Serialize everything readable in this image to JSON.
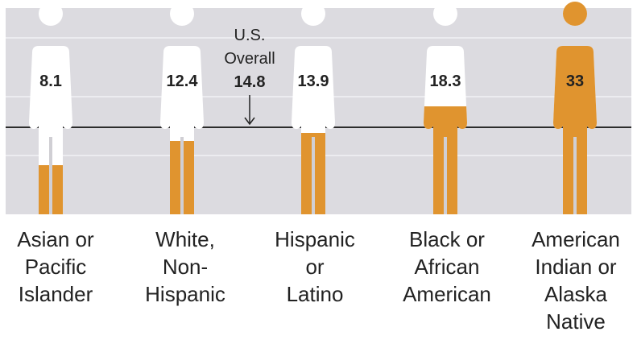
{
  "chart_data": {
    "type": "pictograph",
    "title": "",
    "categories": [
      "Asian or Pacific Islander",
      "White, Non-Hispanic",
      "Hispanic or Latino",
      "Black or African American",
      "American Indian or Alaska Native"
    ],
    "values": [
      8.1,
      12.4,
      13.9,
      18.3,
      33
    ],
    "value_labels": [
      "8.1",
      "12.4",
      "13.9",
      "18.3",
      "33"
    ],
    "reference_line": {
      "label": "U.S. Overall",
      "value": 14.8,
      "value_label": "14.8"
    },
    "xlabel": "",
    "ylabel": "",
    "ylim": [
      0,
      33
    ],
    "grid": true,
    "legend": "none",
    "colors": {
      "fill": "#e0942f",
      "empty": "#ffffff",
      "background": "#dcdbe0",
      "gridline": "#ececf0",
      "reference": "#2c2c2c"
    }
  },
  "figures": [
    {
      "value": "8.1",
      "label_lines": [
        "Asian or",
        "Pacific",
        "Islander"
      ]
    },
    {
      "value": "12.4",
      "label_lines": [
        "White,",
        "Non-",
        "Hispanic"
      ]
    },
    {
      "value": "13.9",
      "label_lines": [
        "Hispanic",
        "or",
        "Latino"
      ]
    },
    {
      "value": "18.3",
      "label_lines": [
        "Black or",
        "African",
        "American"
      ]
    },
    {
      "value": "33",
      "label_lines": [
        "American",
        "Indian or",
        "Alaska",
        "Native"
      ]
    }
  ],
  "overall": {
    "line1": "U.S.",
    "line2": "Overall",
    "value": "14.8"
  }
}
